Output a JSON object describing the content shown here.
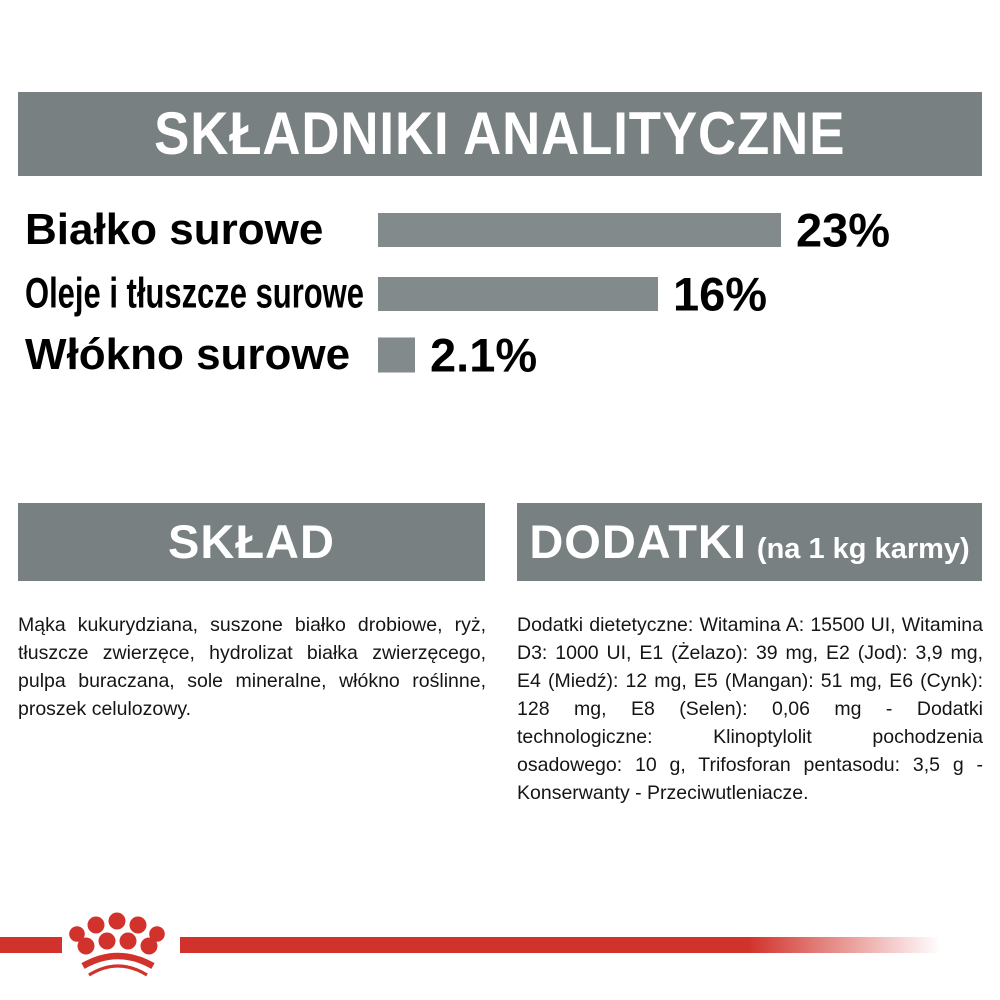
{
  "colors": {
    "header_gray": "#798082",
    "bar_gray": "#838a8c",
    "brand_red": "#d2322c",
    "text": "#151515"
  },
  "analytics": {
    "title": "SKŁADNIKI ANALITYCZNE",
    "chart_data": {
      "type": "bar",
      "orientation": "horizontal",
      "title": "SKŁADNIKI ANALITYCZNE",
      "categories": [
        "Białko surowe",
        "Oleje i tłuszcze surowe",
        "Włókno surowe"
      ],
      "values": [
        23,
        16,
        2.1
      ],
      "value_labels": [
        "23%",
        "16%",
        "2.1%"
      ],
      "unit": "%",
      "bar_color": "#838a8c",
      "grid": "off",
      "legend": "none"
    }
  },
  "sklad": {
    "title": "SKŁAD",
    "body": "Mąka kukurydziana, suszone białko drobiowe, ryż, tłuszcze zwierzęce, hydrolizat białka zwierzęcego, pulpa buraczana, sole mineralne, włókno roślinne, proszek celulozowy."
  },
  "dodatki": {
    "title": "DODATKI",
    "subtitle": "(na 1 kg karmy)",
    "body": "Dodatki dietetyczne: Witamina A: 15500 UI, Witamina D3: 1000 UI, E1 (Żelazo): 39 mg, E2 (Jod): 3,9 mg, E4 (Miedź): 12 mg, E5 (Mangan): 51 mg, E6 (Cynk): 128 mg, E8 (Selen): 0,06 mg - Dodatki technologiczne: Klinoptylolit pochodzenia osadowego: 10 g, Trifosforan pentasodu: 3,5 g - Konserwanty - Przeciwutleniacze."
  },
  "footer": {
    "logo": "royal-canin-crown"
  }
}
